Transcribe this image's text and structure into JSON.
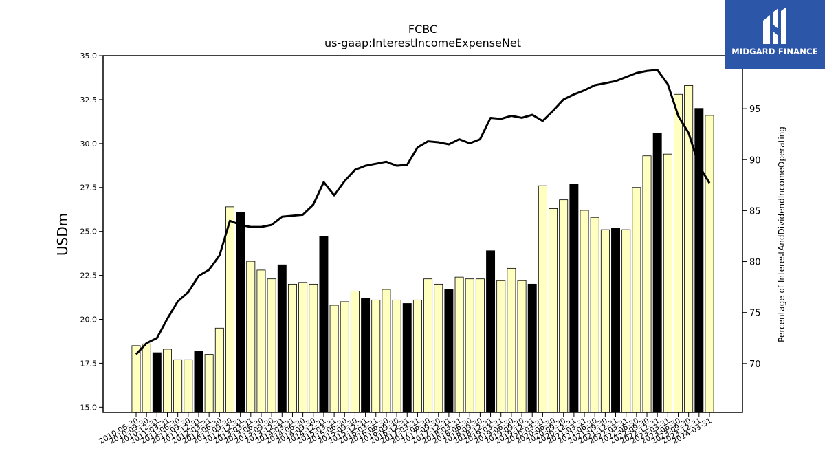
{
  "chart_data": {
    "type": "bar",
    "title": "FCBC",
    "subtitle": "us-gaap:InterestIncomeExpenseNet",
    "ylabel": "USDm",
    "y2label": "Percentage of InterestAndDividendIncomeOperating",
    "ylim": [
      14.7,
      35.0
    ],
    "y2lim": [
      65.2,
      100.2
    ],
    "yticks": [
      "15.0",
      "17.5",
      "20.0",
      "22.5",
      "25.0",
      "27.5",
      "30.0",
      "32.5",
      "35.0"
    ],
    "y2ticks": [
      "70",
      "75",
      "80",
      "85",
      "90",
      "95"
    ],
    "categories": [
      "2010-06-30",
      "2010-09-30",
      "2010-12-31",
      "2011-03-31",
      "2011-06-30",
      "2011-09-30",
      "2011-12-31",
      "2012-03-31",
      "2012-06-30",
      "2012-09-30",
      "2012-12-31",
      "2013-03-31",
      "2013-06-30",
      "2013-09-30",
      "2013-12-31",
      "2014-03-31",
      "2014-06-30",
      "2014-09-30",
      "2014-12-31",
      "2015-03-31",
      "2015-06-30",
      "2015-09-30",
      "2015-12-31",
      "2016-03-31",
      "2016-06-30",
      "2016-09-30",
      "2016-12-31",
      "2017-03-31",
      "2017-06-30",
      "2017-09-30",
      "2017-12-31",
      "2018-03-31",
      "2018-06-30",
      "2018-09-30",
      "2018-12-31",
      "2019-03-31",
      "2019-06-30",
      "2019-09-30",
      "2019-12-31",
      "2020-03-31",
      "2020-06-30",
      "2020-09-30",
      "2020-12-31",
      "2021-03-31",
      "2021-06-30",
      "2021-09-30",
      "2021-12-31",
      "2022-03-31",
      "2022-06-30",
      "2022-09-30",
      "2022-12-31",
      "2023-03-31",
      "2023-06-30",
      "2023-09-30",
      "2023-12-31",
      "2024-03-31"
    ],
    "xtick_labels": [
      "2010-06-30",
      "2010-09-30",
      "2010-12-31",
      "2011-03-31",
      "2011-06-30",
      "2011-09-30",
      "2011-12-31",
      "2012-03-31",
      "2012-06-30",
      "2012-09-30",
      "2012-12-31",
      "2013-03-31",
      "2013-06-30",
      "2013-09-30",
      "2013-12-31",
      "2014-03-31",
      "2014-06-30",
      "2014-09-30",
      "2014-12-31",
      "2015-03-31",
      "2015-06-30",
      "2015-09-30",
      "2015-12-31",
      "2016-03-31",
      "2016-06-30",
      "2016-09-30",
      "2016-12-31",
      "2017-03-31",
      "2017-06-30",
      "2017-09-30",
      "2017-12-31",
      "2018-03-31",
      "2018-06-30",
      "2018-09-30",
      "2018-12-31",
      "2019-03-31",
      "2019-06-30",
      "2019-09-30",
      "2019-12-31",
      "2020-03-31",
      "2020-06-30",
      "2020-09-30",
      "2020-12-31",
      "2021-03-31",
      "2021-06-30",
      "2021-09-30",
      "2021-12-31",
      "2022-03-31",
      "2022-06-30",
      "2022-09-30",
      "2022-12-31",
      "2023-03-31",
      "2023-06-30",
      "2023-09-30",
      "2023-12-31",
      "2024-03-31"
    ],
    "values": [
      18.5,
      18.6,
      18.1,
      18.3,
      17.7,
      17.7,
      18.2,
      18.0,
      19.5,
      26.4,
      26.1,
      23.3,
      22.8,
      22.3,
      23.1,
      22.0,
      22.1,
      22.0,
      24.7,
      20.8,
      21.0,
      21.6,
      21.2,
      21.1,
      21.7,
      21.1,
      20.9,
      21.1,
      22.3,
      22.0,
      21.7,
      22.4,
      22.3,
      22.3,
      23.9,
      22.2,
      22.9,
      22.2,
      22.0,
      27.6,
      26.3,
      26.8,
      27.7,
      26.2,
      25.8,
      25.1,
      25.2,
      25.1,
      27.5,
      29.3,
      30.6,
      29.4,
      32.8,
      33.3,
      32.0,
      31.6
    ],
    "highlight": [
      false,
      false,
      true,
      false,
      false,
      false,
      true,
      false,
      false,
      false,
      true,
      false,
      false,
      false,
      true,
      false,
      false,
      false,
      true,
      false,
      false,
      false,
      true,
      false,
      false,
      false,
      true,
      false,
      false,
      false,
      true,
      false,
      false,
      false,
      true,
      false,
      false,
      false,
      true,
      false,
      false,
      false,
      true,
      false,
      false,
      false,
      true,
      false,
      false,
      false,
      true,
      false,
      false,
      false,
      true,
      false
    ],
    "line_values": [
      70.9,
      72.0,
      72.5,
      74.4,
      76.1,
      77.0,
      78.6,
      79.2,
      80.6,
      84.0,
      83.6,
      83.4,
      83.4,
      83.6,
      84.4,
      84.5,
      84.6,
      85.6,
      87.8,
      86.5,
      87.9,
      89.0,
      89.4,
      89.6,
      89.8,
      89.4,
      89.5,
      91.2,
      91.8,
      91.7,
      91.5,
      92.0,
      91.6,
      92.0,
      94.1,
      94.0,
      94.3,
      94.1,
      94.4,
      93.8,
      94.8,
      95.9,
      96.4,
      96.8,
      97.3,
      97.5,
      97.7,
      98.1,
      98.5,
      98.7,
      98.8,
      97.4,
      94.3,
      92.6,
      89.4,
      87.7
    ],
    "colors": {
      "bar": "#ffffc0",
      "bar_highlight": "#000000",
      "bar_edge": "#000000",
      "line": "#000000"
    }
  },
  "logo": {
    "text": "MIDGARD FINANCE",
    "color": "#2c56a8"
  }
}
